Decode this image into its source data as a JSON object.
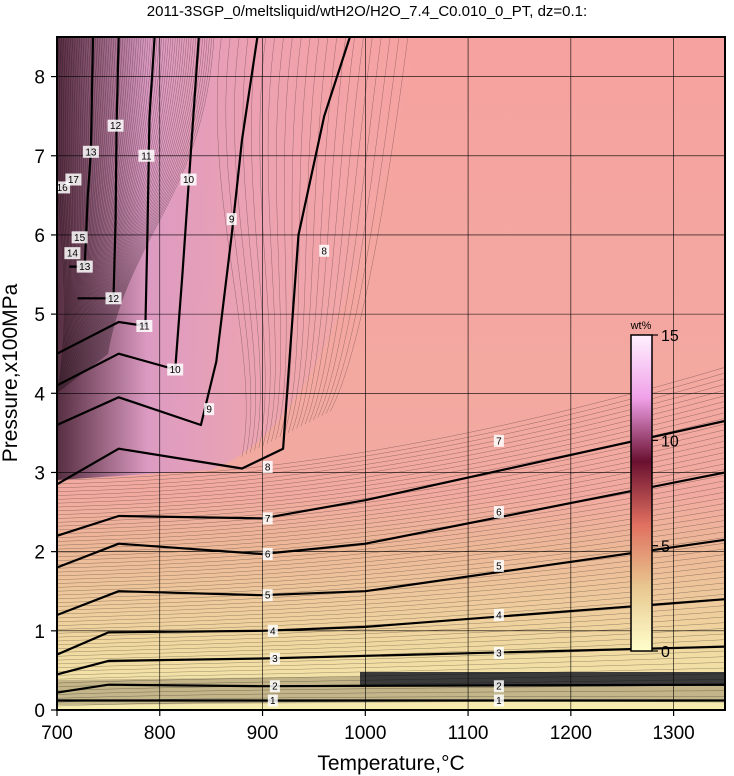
{
  "chart_data": {
    "type": "heatmap",
    "title": "2011-3SGP_0/meltsliquid/wtH2O/H2O_7.4_C0.010_0_PT, dz=0.1:",
    "xlabel": "Temperature,°C",
    "ylabel": "Pressure,x100MPa",
    "xlim": [
      700,
      1350
    ],
    "ylim": [
      0,
      8.5
    ],
    "x_ticks": [
      "700",
      "800",
      "900",
      "1000",
      "1100",
      "1200",
      "1300"
    ],
    "y_ticks": [
      "0",
      "1",
      "2",
      "3",
      "4",
      "5",
      "6",
      "7",
      "8"
    ],
    "grid": true,
    "colorbar": {
      "label": "wt%",
      "ticks": [
        "0",
        "5",
        "10",
        "15"
      ],
      "range": [
        0,
        15
      ],
      "colors": [
        "#ffffcc",
        "#e8c890",
        "#e07060",
        "#6a1030",
        "#f0a0e8",
        "#fff0ff"
      ]
    },
    "contour_labels": [
      {
        "text": "1",
        "x": 910,
        "y": 0.12
      },
      {
        "text": "1",
        "x": 1130,
        "y": 0.12
      },
      {
        "text": "2",
        "x": 912,
        "y": 0.3
      },
      {
        "text": "2",
        "x": 1130,
        "y": 0.3
      },
      {
        "text": "3",
        "x": 912,
        "y": 0.65
      },
      {
        "text": "3",
        "x": 1130,
        "y": 0.72
      },
      {
        "text": "4",
        "x": 910,
        "y": 1.0
      },
      {
        "text": "4",
        "x": 1130,
        "y": 1.2
      },
      {
        "text": "5",
        "x": 905,
        "y": 1.45
      },
      {
        "text": "5",
        "x": 1130,
        "y": 1.82
      },
      {
        "text": "6",
        "x": 905,
        "y": 1.97
      },
      {
        "text": "6",
        "x": 1130,
        "y": 2.5
      },
      {
        "text": "7",
        "x": 905,
        "y": 2.42
      },
      {
        "text": "7",
        "x": 1130,
        "y": 3.4
      },
      {
        "text": "8",
        "x": 905,
        "y": 3.07
      },
      {
        "text": "8",
        "x": 960,
        "y": 5.8
      },
      {
        "text": "9",
        "x": 848,
        "y": 3.8
      },
      {
        "text": "9",
        "x": 870,
        "y": 6.2
      },
      {
        "text": "10",
        "x": 815,
        "y": 4.3
      },
      {
        "text": "10",
        "x": 828,
        "y": 6.7
      },
      {
        "text": "11",
        "x": 785,
        "y": 4.85
      },
      {
        "text": "11",
        "x": 787,
        "y": 7.0
      },
      {
        "text": "12",
        "x": 755,
        "y": 5.2
      },
      {
        "text": "12",
        "x": 757,
        "y": 7.38
      },
      {
        "text": "13",
        "x": 727,
        "y": 5.6
      },
      {
        "text": "13",
        "x": 733,
        "y": 7.05
      },
      {
        "text": "14",
        "x": 715,
        "y": 5.77
      },
      {
        "text": "15",
        "x": 722,
        "y": 5.97
      },
      {
        "text": "16",
        "x": 705,
        "y": 6.6
      },
      {
        "text": "17",
        "x": 716,
        "y": 6.7
      }
    ]
  }
}
